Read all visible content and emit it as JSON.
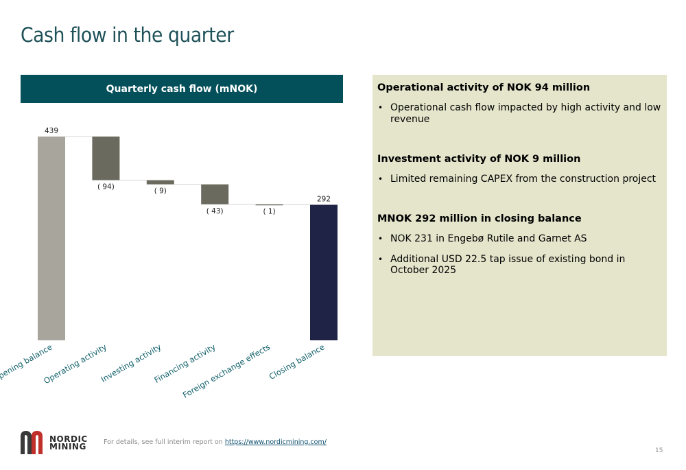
{
  "slide": {
    "title": "Cash flow in the quarter",
    "page_number": "15"
  },
  "chart_data": {
    "type": "waterfall",
    "title": "Quarterly cash flow (mNOK)",
    "categories": [
      "Opening balance",
      "Operating activity",
      "Investing activity",
      "Financing activity",
      "Foreign exchange effects",
      "Closing balance"
    ],
    "values": [
      439,
      -94,
      -9,
      -43,
      -1,
      292
    ],
    "data_labels": [
      "439",
      "( 94)",
      "( 9)",
      "( 43)",
      "( 1)",
      "292"
    ],
    "bar_kinds": [
      "total",
      "change",
      "change",
      "change",
      "change",
      "total"
    ],
    "ylim": [
      0,
      439
    ],
    "colors": {
      "opening": "#a8a59d",
      "change": "#6b6a5e",
      "closing": "#1f2345",
      "header_bg": "#04505a",
      "axis_label": "#0e5e68"
    }
  },
  "panel": {
    "background": "#e5e5cc",
    "sections": [
      {
        "heading": "Operational activity of NOK 94 million",
        "bullets": [
          "Operational cash flow impacted by high activity and low revenue"
        ]
      },
      {
        "heading": "Investment activity of NOK 9 million",
        "bullets": [
          "Limited remaining CAPEX from the construction project"
        ]
      },
      {
        "heading": "MNOK 292 million in closing balance",
        "bullets": [
          "NOK 231 in Engebø Rutile and Garnet AS",
          "Additional USD 22.5 tap issue of existing bond in October 2025"
        ]
      }
    ]
  },
  "footer": {
    "text": "For details, see full interim report on",
    "link": "https://www.nordicmining.com/"
  },
  "logo": {
    "line1": "NORDIC",
    "line2": "MINING"
  }
}
